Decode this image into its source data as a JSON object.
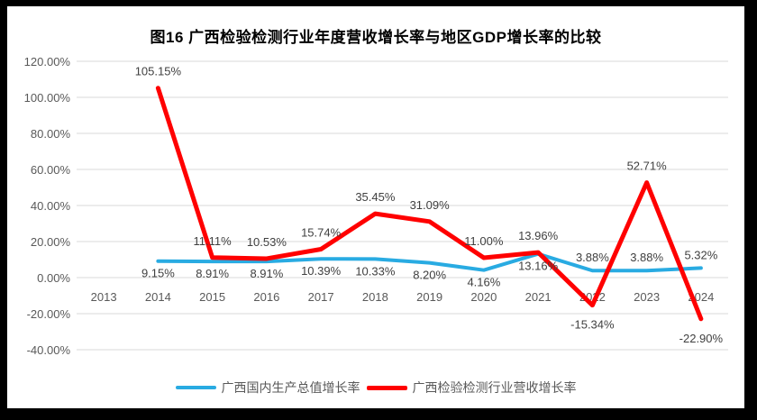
{
  "chart_data": {
    "type": "line",
    "title": "图16 广西检验检测行业年度营收增长率与地区GDP增长率的比较",
    "categories": [
      "2013",
      "2014",
      "2015",
      "2016",
      "2017",
      "2018",
      "2019",
      "2020",
      "2021",
      "2022",
      "2023",
      "2024"
    ],
    "y_axis": {
      "tick_values": [
        120,
        100,
        80,
        60,
        40,
        20,
        0,
        -20,
        -40
      ],
      "tick_labels": [
        "120.00%",
        "100.00%",
        "80.00%",
        "60.00%",
        "40.00%",
        "20.00%",
        "0.00%",
        "-20.00%",
        "-40.00%"
      ],
      "min": -40,
      "max": 120,
      "grid": true
    },
    "series": [
      {
        "name": "广西国内生产总值增长率",
        "color": "#29ABE2",
        "stroke_width": 4,
        "values": [
          null,
          9.15,
          8.91,
          8.91,
          10.39,
          10.33,
          8.2,
          4.16,
          13.16,
          3.88,
          3.88,
          5.32
        ],
        "data_labels": [
          null,
          "9.15%",
          "8.91%",
          "8.91%",
          "10.39%",
          "10.33%",
          "8.20%",
          "4.16%",
          "13.16%",
          "3.88%",
          "3.88%",
          "5.32%"
        ],
        "label_side": [
          null,
          "below",
          "below",
          "below",
          "below",
          "below",
          "below",
          "below",
          "below",
          "above",
          "above",
          "above"
        ]
      },
      {
        "name": "广西检验检测行业营收增长率",
        "color": "#FF0000",
        "stroke_width": 5,
        "values": [
          null,
          105.15,
          11.11,
          10.53,
          15.74,
          35.45,
          31.09,
          11.0,
          13.96,
          -15.34,
          52.71,
          -22.9
        ],
        "data_labels": [
          null,
          "105.15%",
          "11.11%",
          "10.53%",
          "15.74%",
          "35.45%",
          "31.09%",
          "11.00%",
          "13.96%",
          "-15.34%",
          "52.71%",
          "-22.90%"
        ],
        "label_side": [
          null,
          "above",
          "above",
          "above",
          "above",
          "above",
          "above",
          "above",
          "above",
          "below",
          "above",
          "below"
        ]
      }
    ],
    "legend_position": "bottom"
  },
  "colors": {
    "frame_border": "#000000",
    "background": "#FFFFFF",
    "gridline": "#D9D9D9",
    "axis_text": "#595959",
    "data_label_text": "#404040",
    "title_text": "#000000"
  }
}
